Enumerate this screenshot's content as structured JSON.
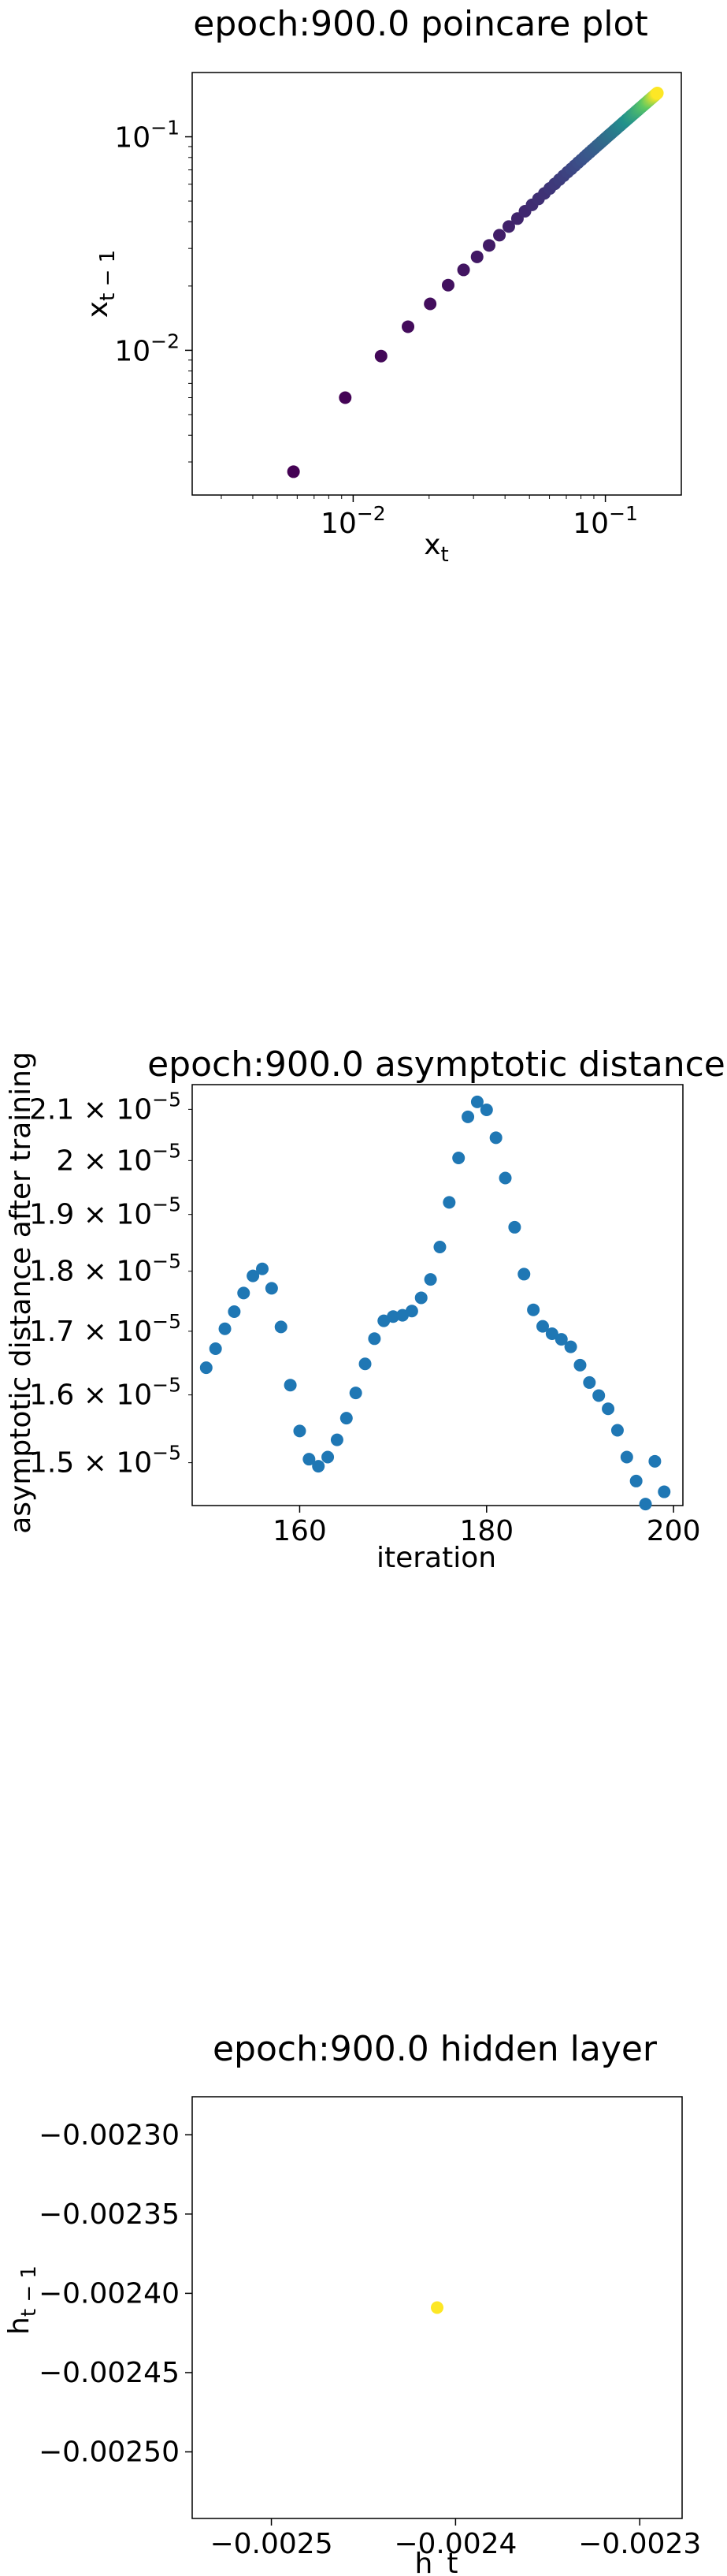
{
  "charts": [
    {
      "type": "scatter",
      "title": "epoch:900.0 poincare plot",
      "xlabel": "x_t",
      "ylabel": "x_{t-1}",
      "xscale": "log",
      "yscale": "log",
      "xlim": [
        0.0023,
        0.2
      ],
      "ylim": [
        0.0021,
        0.2
      ],
      "xticks": [
        {
          "value": 0.01,
          "base": "10",
          "exp": "−2"
        },
        {
          "value": 0.1,
          "base": "10",
          "exp": "−1"
        }
      ],
      "yticks": [
        {
          "value": 0.01,
          "base": "10",
          "exp": "−2"
        },
        {
          "value": 0.1,
          "base": "10",
          "exp": "−1"
        }
      ],
      "colormap": "viridis",
      "points": [
        [
          0.0058,
          0.0027
        ],
        [
          0.0093,
          0.006
        ],
        [
          0.0129,
          0.0094
        ],
        [
          0.0165,
          0.0129
        ],
        [
          0.0202,
          0.0165
        ],
        [
          0.0238,
          0.0202
        ],
        [
          0.0274,
          0.0238
        ],
        [
          0.031,
          0.0274
        ],
        [
          0.0346,
          0.031
        ],
        [
          0.038,
          0.0346
        ],
        [
          0.0414,
          0.038
        ],
        [
          0.0448,
          0.0414
        ],
        [
          0.048,
          0.0448
        ],
        [
          0.0512,
          0.048
        ],
        [
          0.0543,
          0.0512
        ],
        [
          0.0573,
          0.0543
        ],
        [
          0.0602,
          0.0573
        ],
        [
          0.063,
          0.0602
        ],
        [
          0.0657,
          0.063
        ],
        [
          0.0683,
          0.0657
        ],
        [
          0.0708,
          0.0683
        ],
        [
          0.0733,
          0.0708
        ],
        [
          0.0757,
          0.0733
        ],
        [
          0.078,
          0.0757
        ],
        [
          0.0803,
          0.078
        ],
        [
          0.0825,
          0.0803
        ],
        [
          0.0846,
          0.0825
        ],
        [
          0.0867,
          0.0846
        ],
        [
          0.0887,
          0.0867
        ],
        [
          0.0907,
          0.0887
        ],
        [
          0.0926,
          0.0907
        ],
        [
          0.0945,
          0.0926
        ],
        [
          0.0963,
          0.0945
        ],
        [
          0.0981,
          0.0963
        ],
        [
          0.0998,
          0.0981
        ],
        [
          0.1015,
          0.0998
        ],
        [
          0.1031,
          0.1015
        ],
        [
          0.1047,
          0.1031
        ],
        [
          0.1063,
          0.1047
        ],
        [
          0.1078,
          0.1063
        ],
        [
          0.1093,
          0.1078
        ],
        [
          0.1108,
          0.1093
        ],
        [
          0.1122,
          0.1108
        ],
        [
          0.1136,
          0.1122
        ],
        [
          0.115,
          0.1136
        ],
        [
          0.1163,
          0.115
        ],
        [
          0.1176,
          0.1163
        ],
        [
          0.1189,
          0.1176
        ],
        [
          0.1202,
          0.1189
        ],
        [
          0.1214,
          0.1202
        ],
        [
          0.1226,
          0.1214
        ],
        [
          0.1238,
          0.1226
        ],
        [
          0.125,
          0.1238
        ],
        [
          0.1261,
          0.125
        ],
        [
          0.1272,
          0.1261
        ],
        [
          0.1283,
          0.1272
        ],
        [
          0.1294,
          0.1283
        ],
        [
          0.1305,
          0.1294
        ],
        [
          0.1315,
          0.1305
        ],
        [
          0.1325,
          0.1315
        ],
        [
          0.1335,
          0.1325
        ],
        [
          0.1345,
          0.1335
        ],
        [
          0.1355,
          0.1345
        ],
        [
          0.1364,
          0.1355
        ],
        [
          0.1373,
          0.1364
        ],
        [
          0.1382,
          0.1373
        ],
        [
          0.1391,
          0.1382
        ],
        [
          0.14,
          0.1391
        ],
        [
          0.1409,
          0.14
        ],
        [
          0.1417,
          0.1409
        ],
        [
          0.1425,
          0.1417
        ],
        [
          0.1433,
          0.1425
        ],
        [
          0.1441,
          0.1433
        ],
        [
          0.1449,
          0.1441
        ],
        [
          0.1457,
          0.1449
        ],
        [
          0.1464,
          0.1457
        ],
        [
          0.1472,
          0.1464
        ],
        [
          0.1479,
          0.1472
        ],
        [
          0.1486,
          0.1479
        ],
        [
          0.1493,
          0.1486
        ],
        [
          0.15,
          0.1493
        ],
        [
          0.1507,
          0.15
        ],
        [
          0.1513,
          0.1507
        ],
        [
          0.152,
          0.1513
        ],
        [
          0.1526,
          0.152
        ],
        [
          0.1532,
          0.1526
        ],
        [
          0.1538,
          0.1532
        ],
        [
          0.1544,
          0.1538
        ],
        [
          0.155,
          0.1544
        ],
        [
          0.1556,
          0.155
        ],
        [
          0.1562,
          0.1556
        ],
        [
          0.1567,
          0.1562
        ],
        [
          0.1573,
          0.1567
        ],
        [
          0.1578,
          0.1573
        ],
        [
          0.1583,
          0.1578
        ],
        [
          0.1588,
          0.1583
        ],
        [
          0.1593,
          0.1588
        ],
        [
          0.1598,
          0.1593
        ],
        [
          0.1603,
          0.1598
        ],
        [
          0.1607,
          0.1603
        ]
      ]
    },
    {
      "type": "scatter",
      "title": "epoch:900.0 asymptotic distance",
      "xlabel": "iteration",
      "ylabel": "asymptotic distance after training",
      "yscale": "log",
      "xlim": [
        148.5,
        201.0
      ],
      "ylim": [
        1.44e-05,
        2.15e-05
      ],
      "xticks": [
        {
          "value": 160,
          "label": "160"
        },
        {
          "value": 180,
          "label": "180"
        },
        {
          "value": 200,
          "label": "200"
        }
      ],
      "yticks": [
        {
          "value": 2.1e-05,
          "mant": "2.1",
          "exp": "−5"
        },
        {
          "value": 2e-05,
          "mant": "2",
          "exp": "−5"
        },
        {
          "value": 1.9e-05,
          "mant": "1.9",
          "exp": "−5"
        },
        {
          "value": 1.8e-05,
          "mant": "1.8",
          "exp": "−5"
        },
        {
          "value": 1.7e-05,
          "mant": "1.7",
          "exp": "−5"
        },
        {
          "value": 1.6e-05,
          "mant": "1.6",
          "exp": "−5"
        },
        {
          "value": 1.5e-05,
          "mant": "1.5",
          "exp": "−5"
        }
      ],
      "color": "#1f77b4",
      "x": [
        150,
        151,
        152,
        153,
        154,
        155,
        156,
        157,
        158,
        159,
        160,
        161,
        162,
        163,
        164,
        165,
        166,
        167,
        168,
        169,
        170,
        171,
        172,
        173,
        174,
        175,
        176,
        177,
        178,
        179,
        180,
        181,
        182,
        183,
        184,
        185,
        186,
        187,
        188,
        189,
        190,
        191,
        192,
        193,
        194,
        195,
        196,
        197,
        198,
        199
      ],
      "y": [
        1.642e-05,
        1.672e-05,
        1.704e-05,
        1.732e-05,
        1.763e-05,
        1.792e-05,
        1.804e-05,
        1.771e-05,
        1.707e-05,
        1.615e-05,
        1.546e-05,
        1.505e-05,
        1.495e-05,
        1.508e-05,
        1.533e-05,
        1.565e-05,
        1.603e-05,
        1.648e-05,
        1.688e-05,
        1.717e-05,
        1.724e-05,
        1.726e-05,
        1.733e-05,
        1.755e-05,
        1.786e-05,
        1.842e-05,
        1.922e-05,
        2.005e-05,
        2.085e-05,
        2.115e-05,
        2.099e-05,
        2.044e-05,
        1.967e-05,
        1.877e-05,
        1.795e-05,
        1.735e-05,
        1.708e-05,
        1.696e-05,
        1.687e-05,
        1.675e-05,
        1.646e-05,
        1.619e-05,
        1.599e-05,
        1.579e-05,
        1.547e-05,
        1.508e-05,
        1.474e-05,
        1.442e-05,
        1.502e-05,
        1.459e-05
      ]
    },
    {
      "type": "scatter",
      "title": "epoch:900.0 hidden layer",
      "xlabel": "h_t",
      "ylabel": "h_{t-1}",
      "xlim": [
        -0.002543,
        -0.002277
      ],
      "ylim": [
        -0.002542,
        -0.002276
      ],
      "xticks": [
        {
          "value": -0.0025,
          "label": "−0.0025"
        },
        {
          "value": -0.0024,
          "label": "−0.0024"
        },
        {
          "value": -0.0023,
          "label": "−0.0023"
        }
      ],
      "yticks": [
        {
          "value": -0.0023,
          "label": "−0.00230"
        },
        {
          "value": -0.00235,
          "label": "−0.00235"
        },
        {
          "value": -0.0024,
          "label": "−0.00240"
        },
        {
          "value": -0.00245,
          "label": "−0.00245"
        },
        {
          "value": -0.0025,
          "label": "−0.00250"
        }
      ],
      "color": "#fde725",
      "points": [
        [
          -0.00241,
          -0.002409
        ]
      ]
    }
  ]
}
